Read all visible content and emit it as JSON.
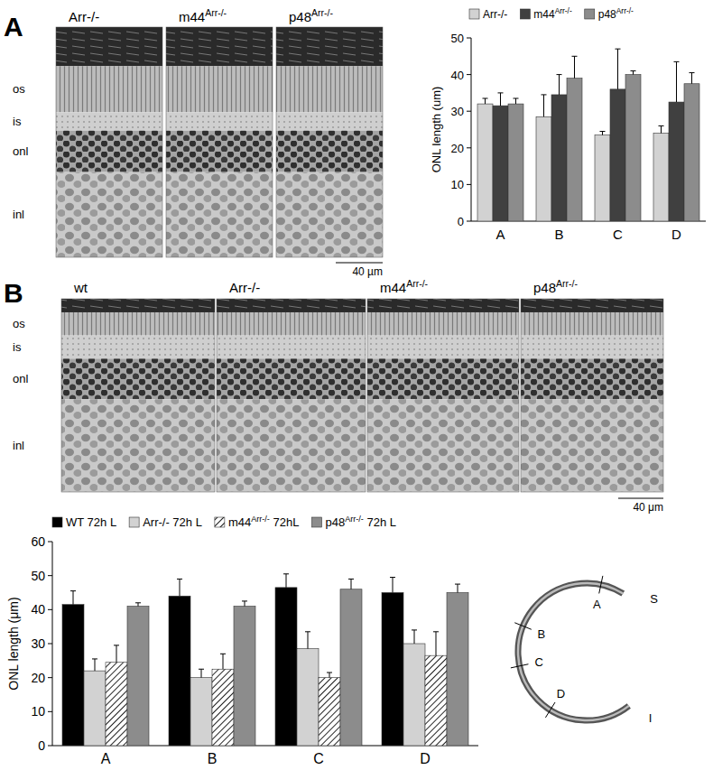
{
  "figure": {
    "panel_a": {
      "label": "A",
      "images": [
        "Arr-/-",
        "m44Arr-/-",
        "p48Arr-/-"
      ],
      "layers": [
        "os",
        "is",
        "onl",
        "inl"
      ],
      "scale_bar": "40 µm"
    },
    "panel_b": {
      "label": "B",
      "images": [
        "wt",
        "Arr-/-",
        "m44Arr-/-",
        "p48Arr-/-"
      ],
      "layers": [
        "os",
        "is",
        "onl",
        "inl"
      ],
      "scale_bar": "40 μm"
    },
    "retina_diagram": {
      "positions": [
        "A",
        "B",
        "C",
        "D"
      ],
      "superior": "S",
      "inferior": "I"
    }
  },
  "chart_data": [
    {
      "type": "bar",
      "ylabel": "ONL length (um)",
      "categories": [
        "A",
        "B",
        "C",
        "D"
      ],
      "series": [
        {
          "name": "Arr-/-",
          "color": "#d2d2d2",
          "values": [
            32,
            28.5,
            23.5,
            24
          ],
          "errors": [
            1.5,
            6,
            1,
            2
          ]
        },
        {
          "name": "m44Arr-/-",
          "color": "#404040",
          "values": [
            31.5,
            34.5,
            36,
            32.5
          ],
          "errors": [
            3.5,
            5.5,
            11,
            11
          ]
        },
        {
          "name": "p48Arr-/-",
          "color": "#8c8c8c",
          "values": [
            32,
            39,
            40,
            37.5
          ],
          "errors": [
            1.5,
            6,
            1,
            3
          ]
        }
      ],
      "ylim": [
        0,
        50
      ],
      "yticks": [
        0,
        10,
        20,
        30,
        40,
        50
      ],
      "grid": false,
      "legend": "top"
    },
    {
      "type": "bar",
      "ylabel": "ONL length (μm)",
      "categories": [
        "A",
        "B",
        "C",
        "D"
      ],
      "series": [
        {
          "name": "WT 72h L",
          "color": "#000000",
          "values": [
            41.5,
            44,
            46.5,
            45
          ],
          "errors": [
            4,
            5,
            4,
            4.5
          ]
        },
        {
          "name": "Arr-/- 72h L",
          "color": "#d2d2d2",
          "values": [
            22,
            20,
            28.5,
            30
          ],
          "errors": [
            3.5,
            2.5,
            5,
            4
          ]
        },
        {
          "name": "m44Arr-/- 72hL",
          "color": "#ffffff",
          "line_style": "hatched",
          "values": [
            24.5,
            22.5,
            20,
            26.5
          ],
          "errors": [
            5,
            4.5,
            1.5,
            7
          ]
        },
        {
          "name": "p48Arr-/- 72h L",
          "color": "#8c8c8c",
          "values": [
            41,
            41,
            46,
            45
          ],
          "errors": [
            1,
            1.5,
            3,
            2.5
          ]
        }
      ],
      "ylim": [
        0,
        60
      ],
      "yticks": [
        0,
        10,
        20,
        30,
        40,
        50,
        60
      ],
      "grid": false,
      "legend": "top"
    }
  ]
}
